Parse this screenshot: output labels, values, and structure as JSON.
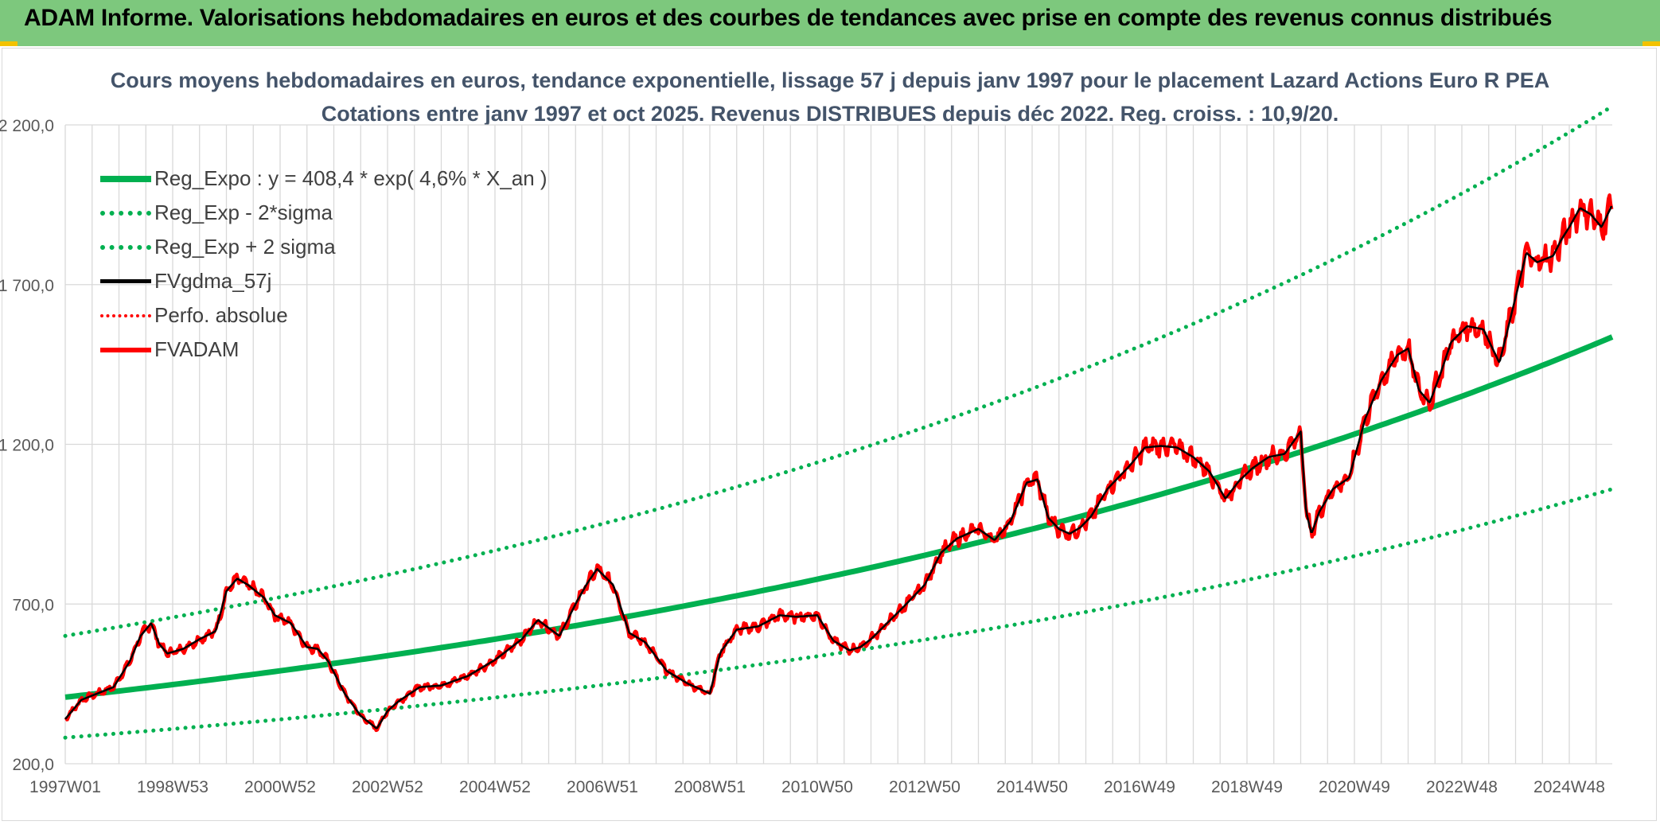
{
  "header": {
    "title": "ADAM Informe. Valorisations hebdomadaires en euros et des courbes de tendances avec prise en compte des revenus connus distribués"
  },
  "colors": {
    "header_band": "#7dc87d",
    "trend_green": "#00b050",
    "series_black": "#000000",
    "series_red": "#ff0000",
    "title_text": "#44546a",
    "grid": "#d9d9d9"
  },
  "chart_data": {
    "type": "line",
    "title_line1": "Cours moyens hebdomadaires en euros, tendance exponentielle, lissage 57 j depuis janv 1997 pour le placement Lazard Actions Euro R PEA",
    "title_line2": "Cotations entre janv 1997 et oct 2025. Revenus DISTRIBUES depuis déc 2022. Reg. croiss. : 10,9/20.",
    "xlabel": "",
    "ylabel": "",
    "x_range": [
      1997.0,
      2025.8
    ],
    "ylim": [
      200,
      2200
    ],
    "y_ticks": [
      {
        "value": 200,
        "label": "200,0"
      },
      {
        "value": 700,
        "label": "700,0"
      },
      {
        "value": 1200,
        "label": "1 200,0"
      },
      {
        "value": 1700,
        "label": "1 700,0"
      },
      {
        "value": 2200,
        "label": "2 200,0"
      }
    ],
    "x_ticks": [
      {
        "value": 1997.0,
        "label": "1997W01"
      },
      {
        "value": 1999.0,
        "label": "1998W53"
      },
      {
        "value": 2001.0,
        "label": "2000W52"
      },
      {
        "value": 2003.0,
        "label": "2002W52"
      },
      {
        "value": 2005.0,
        "label": "2004W52"
      },
      {
        "value": 2007.0,
        "label": "2006W51"
      },
      {
        "value": 2009.0,
        "label": "2008W51"
      },
      {
        "value": 2011.0,
        "label": "2010W50"
      },
      {
        "value": 2013.0,
        "label": "2012W50"
      },
      {
        "value": 2015.0,
        "label": "2014W50"
      },
      {
        "value": 2017.0,
        "label": "2016W49"
      },
      {
        "value": 2019.0,
        "label": "2018W49"
      },
      {
        "value": 2021.0,
        "label": "2020W49"
      },
      {
        "value": 2023.0,
        "label": "2022W48"
      },
      {
        "value": 2025.0,
        "label": "2024W48"
      }
    ],
    "grid_x_step_years": 0.5,
    "legend_position": "top-left",
    "legend": [
      {
        "label": "Reg_Expo : y = 408,4 * exp( 4,6% *  X_an )",
        "color": "#00b050",
        "style": "solid-thick"
      },
      {
        "label": "Reg_Exp - 2*sigma",
        "color": "#00b050",
        "style": "dotted"
      },
      {
        "label": "Reg_Exp + 2 sigma",
        "color": "#00b050",
        "style": "dotted"
      },
      {
        "label": "FVgdma_57j",
        "color": "#000000",
        "style": "solid"
      },
      {
        "label": "Perfo. absolue",
        "color": "#ff0000",
        "style": "dotted-thin"
      },
      {
        "label": "FVADAM",
        "color": "#ff0000",
        "style": "solid"
      }
    ],
    "trend": {
      "a": 408.4,
      "rate": 0.046,
      "x0": 1997.0,
      "lower_factor": 0.69,
      "upper_factor": 1.47
    },
    "series_fvadam": {
      "name": "FVADAM",
      "x": [
        1997.0,
        1997.3,
        1997.6,
        1997.9,
        1998.2,
        1998.4,
        1998.6,
        1998.75,
        1998.9,
        1999.2,
        1999.5,
        1999.8,
        2000.0,
        2000.2,
        2000.4,
        2000.7,
        2000.9,
        2001.2,
        2001.5,
        2001.7,
        2001.9,
        2002.2,
        2002.5,
        2002.8,
        2003.0,
        2003.2,
        2003.6,
        2004.0,
        2004.5,
        2005.0,
        2005.5,
        2005.8,
        2006.2,
        2006.5,
        2006.7,
        2006.9,
        2007.2,
        2007.5,
        2007.8,
        2008.2,
        2008.6,
        2009.0,
        2009.2,
        2009.5,
        2009.9,
        2010.3,
        2010.6,
        2011.0,
        2011.3,
        2011.6,
        2011.8,
        2012.0,
        2012.3,
        2012.6,
        2013.0,
        2013.3,
        2013.6,
        2014.0,
        2014.3,
        2014.6,
        2014.9,
        2015.1,
        2015.3,
        2015.5,
        2015.7,
        2015.9,
        2016.1,
        2016.4,
        2016.8,
        2017.1,
        2017.4,
        2017.7,
        2018.0,
        2018.3,
        2018.6,
        2018.85,
        2019.1,
        2019.4,
        2019.7,
        2020.0,
        2020.1,
        2020.2,
        2020.35,
        2020.6,
        2020.9,
        2021.2,
        2021.5,
        2021.8,
        2022.0,
        2022.2,
        2022.4,
        2022.6,
        2022.8,
        2023.1,
        2023.4,
        2023.7,
        2024.0,
        2024.2,
        2024.4,
        2024.7,
        2024.85,
        2025.0,
        2025.2,
        2025.4,
        2025.6,
        2025.8
      ],
      "values": [
        340,
        400,
        420,
        440,
        520,
        600,
        640,
        575,
        545,
        560,
        590,
        615,
        740,
        780,
        760,
        720,
        665,
        640,
        565,
        560,
        520,
        420,
        350,
        310,
        365,
        395,
        440,
        445,
        475,
        525,
        590,
        650,
        600,
        700,
        760,
        810,
        760,
        610,
        580,
        490,
        450,
        420,
        550,
        620,
        630,
        665,
        660,
        665,
        585,
        555,
        565,
        590,
        640,
        690,
        760,
        860,
        905,
        935,
        900,
        960,
        1080,
        1090,
        970,
        935,
        920,
        940,
        975,
        1060,
        1130,
        1190,
        1195,
        1190,
        1160,
        1115,
        1030,
        1085,
        1125,
        1160,
        1170,
        1240,
        990,
        920,
        990,
        1060,
        1095,
        1280,
        1400,
        1480,
        1500,
        1370,
        1330,
        1420,
        1520,
        1570,
        1560,
        1455,
        1660,
        1800,
        1770,
        1790,
        1840,
        1880,
        1940,
        1920,
        1880,
        1950
      ]
    },
    "series_fvgdma_57j": {
      "name": "FVgdma_57j",
      "description_of_values": "smoothed version of FVADAM (57 day moving average)"
    }
  }
}
